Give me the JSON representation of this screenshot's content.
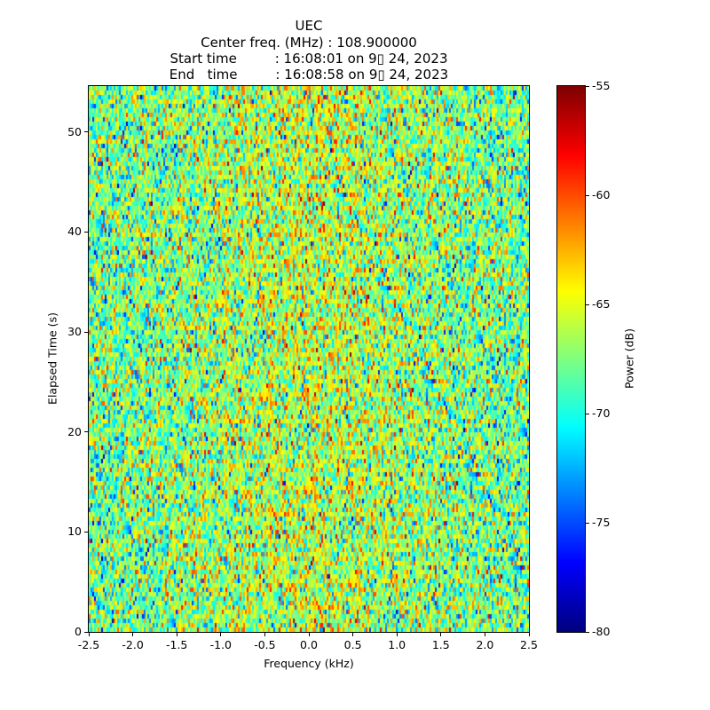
{
  "chart_data": {
    "type": "heatmap",
    "title_lines": [
      "UEC",
      "Center freq. (MHz) : 108.900000",
      "Start time         : 16:08:01 on 9▯ 24, 2023",
      "End   time         : 16:08:58 on 9▯ 24, 2023"
    ],
    "xlabel": "Frequency (kHz)",
    "ylabel": "Elapsed Time (s)",
    "xlim": [
      -2.5,
      2.5
    ],
    "ylim": [
      0,
      54.6
    ],
    "xticks": [
      "-2.5",
      "-2.0",
      "-1.5",
      "-1.0",
      "-0.5",
      "0.0",
      "0.5",
      "1.0",
      "1.5",
      "2.0",
      "2.5"
    ],
    "yticks": [
      "0",
      "10",
      "20",
      "30",
      "40",
      "50"
    ],
    "colorbar": {
      "label": "Power (dB)",
      "range": [
        -80,
        -55
      ],
      "ticks": [
        "-55",
        "-60",
        "-65",
        "-70",
        "-75",
        "-80"
      ],
      "colormap": "jet"
    },
    "data_summary": {
      "freq_bins": 248,
      "time_bins": 123,
      "typical_power_db": -68,
      "center_power_db": -66,
      "spread_db": 3.5
    }
  }
}
